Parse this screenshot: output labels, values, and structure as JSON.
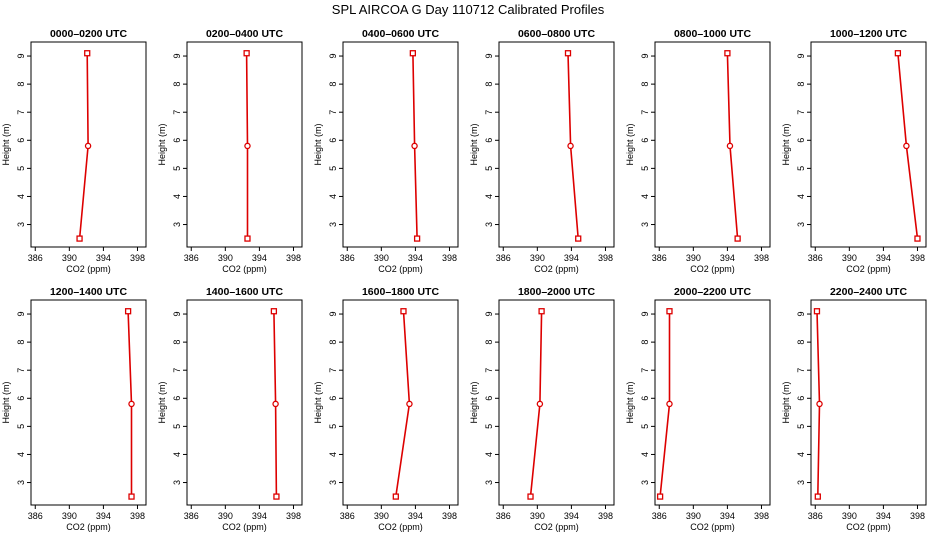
{
  "chart_data": {
    "type": "line",
    "title": "SPL AIRCOA G  Day 110712  Calibrated Profiles",
    "xlabel": "CO2 (ppm)",
    "ylabel": "Height (m)",
    "xlim": [
      385.5,
      399
    ],
    "ylim": [
      2.2,
      9.5
    ],
    "xticks": [
      386,
      390,
      394,
      398
    ],
    "yticks": [
      3,
      4,
      5,
      6,
      7,
      8,
      9
    ],
    "line_color": "#dd0000",
    "panels": [
      {
        "title": "0000–0200 UTC",
        "series": [
          {
            "co2": 392.1,
            "height": 9.1
          },
          {
            "co2": 392.2,
            "height": 5.8
          },
          {
            "co2": 391.2,
            "height": 2.5
          }
        ]
      },
      {
        "title": "0200–0400 UTC",
        "series": [
          {
            "co2": 392.5,
            "height": 9.1
          },
          {
            "co2": 392.6,
            "height": 5.8
          },
          {
            "co2": 392.6,
            "height": 2.5
          }
        ]
      },
      {
        "title": "0400–0600 UTC",
        "series": [
          {
            "co2": 393.7,
            "height": 9.1
          },
          {
            "co2": 393.9,
            "height": 5.8
          },
          {
            "co2": 394.2,
            "height": 2.5
          }
        ]
      },
      {
        "title": "0600–0800 UTC",
        "series": [
          {
            "co2": 393.6,
            "height": 9.1
          },
          {
            "co2": 393.9,
            "height": 5.8
          },
          {
            "co2": 394.8,
            "height": 2.5
          }
        ]
      },
      {
        "title": "0800–1000 UTC",
        "series": [
          {
            "co2": 394.0,
            "height": 9.1
          },
          {
            "co2": 394.3,
            "height": 5.8
          },
          {
            "co2": 395.2,
            "height": 2.5
          }
        ]
      },
      {
        "title": "1000–1200 UTC",
        "series": [
          {
            "co2": 395.7,
            "height": 9.1
          },
          {
            "co2": 396.7,
            "height": 5.8
          },
          {
            "co2": 398.0,
            "height": 2.5
          }
        ]
      },
      {
        "title": "1200–1400 UTC",
        "series": [
          {
            "co2": 396.9,
            "height": 9.1
          },
          {
            "co2": 397.3,
            "height": 5.8
          },
          {
            "co2": 397.3,
            "height": 2.5
          }
        ]
      },
      {
        "title": "1400–1600 UTC",
        "series": [
          {
            "co2": 395.7,
            "height": 9.1
          },
          {
            "co2": 395.9,
            "height": 5.8
          },
          {
            "co2": 396.0,
            "height": 2.5
          }
        ]
      },
      {
        "title": "1600–1800 UTC",
        "series": [
          {
            "co2": 392.6,
            "height": 9.1
          },
          {
            "co2": 393.3,
            "height": 5.8
          },
          {
            "co2": 391.7,
            "height": 2.5
          }
        ]
      },
      {
        "title": "1800–2000 UTC",
        "series": [
          {
            "co2": 390.5,
            "height": 9.1
          },
          {
            "co2": 390.3,
            "height": 5.8
          },
          {
            "co2": 389.2,
            "height": 2.5
          }
        ]
      },
      {
        "title": "2000–2200 UTC",
        "series": [
          {
            "co2": 387.2,
            "height": 9.1
          },
          {
            "co2": 387.2,
            "height": 5.8
          },
          {
            "co2": 386.1,
            "height": 2.5
          }
        ]
      },
      {
        "title": "2200–2400 UTC",
        "series": [
          {
            "co2": 386.2,
            "height": 9.1
          },
          {
            "co2": 386.5,
            "height": 5.8
          },
          {
            "co2": 386.3,
            "height": 2.5
          }
        ]
      }
    ]
  }
}
